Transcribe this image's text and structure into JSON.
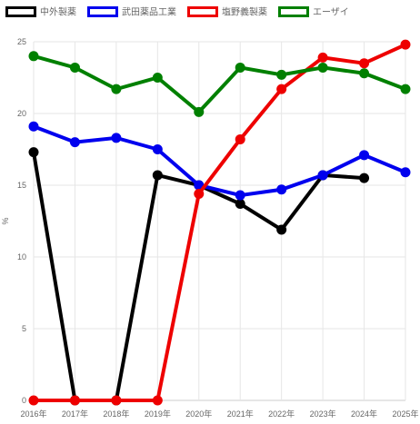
{
  "chart_data": {
    "type": "line",
    "categories": [
      "2016年",
      "2017年",
      "2018年",
      "2019年",
      "2020年",
      "2021年",
      "2022年",
      "2023年",
      "2024年",
      "2025年"
    ],
    "ylabel": "%",
    "ylim": [
      0,
      25
    ],
    "yticks": [
      "0",
      "5",
      "10",
      "15",
      "20",
      "25"
    ],
    "grid": true,
    "legend_position": "top-left",
    "series": [
      {
        "name": "中外製薬",
        "color": "#000000",
        "values": [
          17.3,
          0,
          0,
          15.7,
          15.0,
          13.7,
          11.9,
          15.7,
          15.5,
          null
        ]
      },
      {
        "name": "武田薬品工業",
        "color": "#0000ee",
        "values": [
          19.1,
          18.0,
          18.3,
          17.5,
          15.0,
          14.3,
          14.7,
          15.7,
          17.1,
          15.9
        ]
      },
      {
        "name": "塩野義製薬",
        "color": "#ee0000",
        "values": [
          0,
          0,
          0,
          0,
          14.4,
          18.2,
          21.7,
          23.9,
          23.5,
          24.8
        ]
      },
      {
        "name": "エーザイ",
        "color": "#008000",
        "values": [
          24.0,
          23.2,
          21.7,
          22.5,
          20.1,
          23.2,
          22.7,
          23.2,
          22.8,
          21.7
        ]
      }
    ]
  }
}
